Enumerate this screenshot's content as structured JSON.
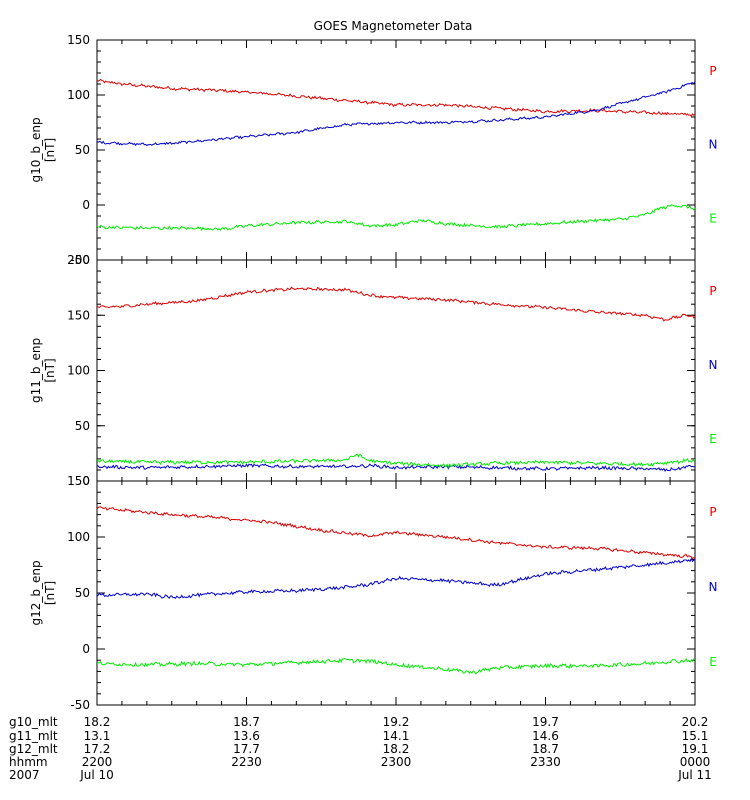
{
  "chart_data": {
    "type": "line",
    "title": "GOES Magnetometer Data",
    "colors": {
      "P": "#dd0000",
      "N": "#0000cc",
      "E": "#00ee00"
    },
    "x_range": [
      0,
      120
    ],
    "x_unit": "minutes since 2200 UT, Jul 10 2007",
    "panels": [
      {
        "id": "g10",
        "ylabel": "g10_b_enp",
        "yunit": "[nT]",
        "ylim": [
          -50,
          150
        ],
        "yticks": [
          -50,
          0,
          50,
          100,
          150
        ],
        "legend": [
          "P",
          "N",
          "E"
        ],
        "series": [
          {
            "name": "P",
            "color": "#dd0000",
            "noise": 1.2,
            "x": [
              0,
              5,
              15,
              25,
              35,
              45,
              55,
              60,
              70,
              80,
              90,
              100,
              110,
              120
            ],
            "y": [
              113,
              110,
              106,
              104,
              101,
              97,
              93,
              91,
              91,
              88,
              85,
              86,
              84,
              82
            ]
          },
          {
            "name": "N",
            "color": "#0000cc",
            "noise": 1.0,
            "x": [
              0,
              10,
              15,
              20,
              30,
              40,
              50,
              60,
              70,
              80,
              90,
              100,
              105,
              110,
              115,
              120
            ],
            "y": [
              57,
              55,
              56,
              58,
              62,
              66,
              73,
              75,
              75,
              77,
              80,
              86,
              92,
              98,
              104,
              112
            ]
          },
          {
            "name": "E",
            "color": "#00ee00",
            "noise": 1.3,
            "x": [
              0,
              10,
              20,
              25,
              30,
              40,
              50,
              55,
              60,
              65,
              70,
              80,
              90,
              100,
              105,
              110,
              113,
              116,
              120
            ],
            "y": [
              -20,
              -21,
              -21,
              -22,
              -19,
              -16,
              -15,
              -19,
              -18,
              -14,
              -17,
              -20,
              -17,
              -14,
              -13,
              -9,
              -3,
              0,
              -3
            ]
          }
        ]
      },
      {
        "id": "g11",
        "ylabel": "g11_b_enp",
        "yunit": "[nT]",
        "ylim": [
          0,
          200
        ],
        "yticks": [
          0,
          50,
          100,
          150,
          200
        ],
        "legend": [
          "P",
          "N",
          "E"
        ],
        "series": [
          {
            "name": "P",
            "color": "#dd0000",
            "noise": 1.2,
            "x": [
              0,
              5,
              10,
              20,
              30,
              40,
              50,
              55,
              60,
              70,
              80,
              90,
              100,
              110,
              114,
              118,
              120
            ],
            "y": [
              157,
              158,
              160,
              163,
              171,
              174,
              173,
              168,
              166,
              164,
              160,
              157,
              153,
              150,
              146,
              150,
              149
            ]
          },
          {
            "name": "N",
            "color": "#0000cc",
            "noise": 1.3,
            "x": [
              0,
              10,
              20,
              30,
              40,
              50,
              55,
              60,
              70,
              80,
              90,
              100,
              110,
              115,
              120
            ],
            "y": [
              13,
              12,
              13,
              14,
              13,
              13,
              14,
              12,
              13,
              12,
              11,
              12,
              11,
              10,
              14
            ]
          },
          {
            "name": "E",
            "color": "#00ee00",
            "noise": 1.4,
            "x": [
              0,
              10,
              20,
              30,
              40,
              50,
              52,
              55,
              60,
              70,
              80,
              90,
              100,
              110,
              115,
              120
            ],
            "y": [
              18,
              17,
              17,
              17,
              18,
              19,
              24,
              18,
              16,
              14,
              16,
              17,
              16,
              15,
              17,
              19
            ]
          }
        ]
      },
      {
        "id": "g12",
        "ylabel": "g12_b_enp",
        "yunit": "[nT]",
        "ylim": [
          -50,
          150
        ],
        "yticks": [
          -50,
          0,
          50,
          100,
          150
        ],
        "legend": [
          "P",
          "N",
          "E"
        ],
        "series": [
          {
            "name": "P",
            "color": "#dd0000",
            "noise": 1.2,
            "x": [
              0,
              5,
              15,
              25,
              35,
              45,
              55,
              60,
              70,
              80,
              90,
              100,
              110,
              120
            ],
            "y": [
              126,
              124,
              120,
              117,
              113,
              106,
              101,
              104,
              100,
              95,
              91,
              90,
              86,
              82
            ]
          },
          {
            "name": "N",
            "color": "#0000cc",
            "noise": 1.4,
            "x": [
              0,
              10,
              15,
              20,
              30,
              40,
              50,
              55,
              60,
              70,
              80,
              85,
              90,
              100,
              110,
              120
            ],
            "y": [
              48,
              49,
              46,
              48,
              51,
              52,
              55,
              58,
              63,
              61,
              57,
              62,
              67,
              71,
              75,
              80
            ]
          },
          {
            "name": "E",
            "color": "#00ee00",
            "noise": 1.6,
            "x": [
              0,
              10,
              20,
              30,
              40,
              50,
              55,
              60,
              70,
              75,
              80,
              90,
              100,
              110,
              115,
              120
            ],
            "y": [
              -13,
              -14,
              -13,
              -14,
              -12,
              -10,
              -11,
              -14,
              -18,
              -21,
              -17,
              -15,
              -15,
              -13,
              -11,
              -10
            ]
          }
        ]
      }
    ],
    "x_tick_minutes": [
      0,
      30,
      60,
      90,
      120
    ],
    "x_labels": [
      {
        "name": "g10_mlt",
        "values": [
          "18.2",
          "18.7",
          "19.2",
          "19.7",
          "20.2"
        ]
      },
      {
        "name": "g11_mlt",
        "values": [
          "13.1",
          "13.6",
          "14.1",
          "14.6",
          "15.1"
        ]
      },
      {
        "name": "g12_mlt",
        "values": [
          "17.2",
          "17.7",
          "18.2",
          "18.7",
          "19.1"
        ]
      },
      {
        "name": "hhmm",
        "values": [
          "2200",
          "2230",
          "2300",
          "2330",
          "0000"
        ]
      },
      {
        "name": "2007",
        "values": [
          "Jul 10",
          "",
          "",
          "",
          "Jul 11"
        ]
      }
    ]
  }
}
